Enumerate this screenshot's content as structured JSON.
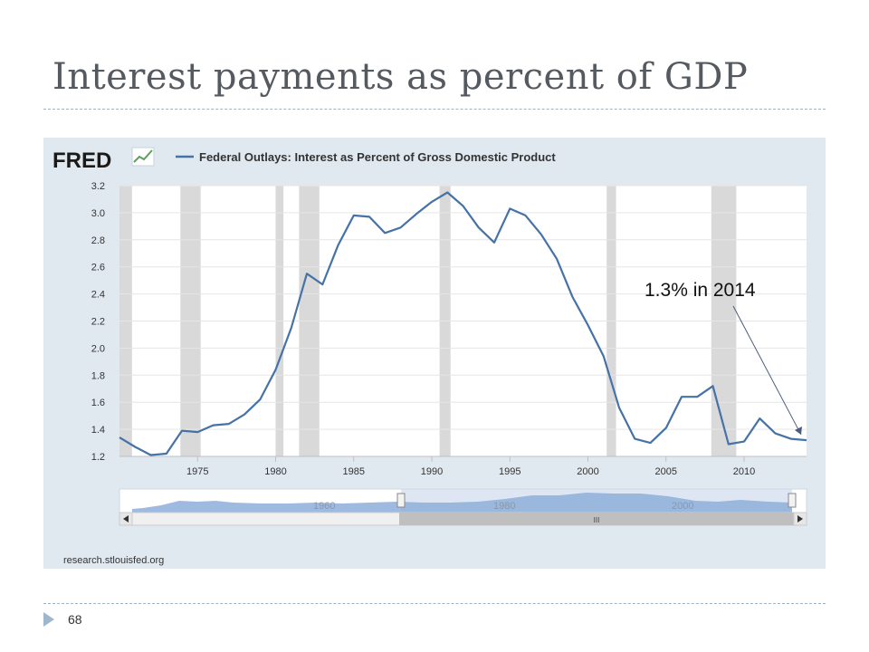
{
  "slide": {
    "title": "Interest payments as percent of GDP",
    "page_number": "68"
  },
  "fred": {
    "logo_text": "FRED",
    "source": "research.stlouisfed.org",
    "legend_label": "Federal Outlays: Interest as Percent of Gross Domestic Product",
    "series_color": "#4572a7",
    "recession_color": "#d9d9d9",
    "navigator_labels": [
      "1960",
      "1980",
      "2000"
    ],
    "scrollbar_grip": "III",
    "annotation": "1.3% in 2014"
  },
  "chart_data": {
    "type": "line",
    "title": "",
    "xlabel": "",
    "ylabel": "",
    "xlim": [
      1970,
      2014
    ],
    "ylim": [
      1.2,
      3.2
    ],
    "yticks": [
      1.2,
      1.4,
      1.6,
      1.8,
      2.0,
      2.2,
      2.4,
      2.6,
      2.8,
      3.0,
      3.2
    ],
    "xticks": [
      1975,
      1980,
      1985,
      1990,
      1995,
      2000,
      2005,
      2010
    ],
    "grid": "horizontal",
    "recessions": [
      [
        1970.0,
        1970.8
      ],
      [
        1973.9,
        1975.2
      ],
      [
        1980.0,
        1980.5
      ],
      [
        1981.5,
        1982.8
      ],
      [
        1990.5,
        1991.2
      ],
      [
        2001.2,
        2001.8
      ],
      [
        2007.9,
        2009.5
      ]
    ],
    "series": [
      {
        "name": "Federal Outlays: Interest as Percent of Gross Domestic Product",
        "x": [
          1970,
          1971,
          1972,
          1973,
          1974,
          1975,
          1976,
          1977,
          1978,
          1979,
          1980,
          1981,
          1982,
          1983,
          1984,
          1985,
          1986,
          1987,
          1988,
          1989,
          1990,
          1991,
          1992,
          1993,
          1994,
          1995,
          1996,
          1997,
          1998,
          1999,
          2000,
          2001,
          2002,
          2003,
          2004,
          2005,
          2006,
          2007,
          2008,
          2009,
          2010,
          2011,
          2012,
          2013,
          2014
        ],
        "values": [
          1.34,
          1.27,
          1.21,
          1.22,
          1.39,
          1.38,
          1.43,
          1.44,
          1.51,
          1.62,
          1.84,
          2.15,
          2.55,
          2.47,
          2.76,
          2.98,
          2.97,
          2.85,
          2.89,
          2.99,
          3.08,
          3.15,
          3.05,
          2.89,
          2.78,
          3.03,
          2.98,
          2.84,
          2.66,
          2.38,
          2.17,
          1.94,
          1.56,
          1.33,
          1.3,
          1.41,
          1.64,
          1.64,
          1.72,
          1.29,
          1.31,
          1.48,
          1.37,
          1.33,
          1.32
        ]
      }
    ],
    "annotations": [
      {
        "text": "1.3% in 2014",
        "x": 2014,
        "y": 1.32
      }
    ]
  }
}
